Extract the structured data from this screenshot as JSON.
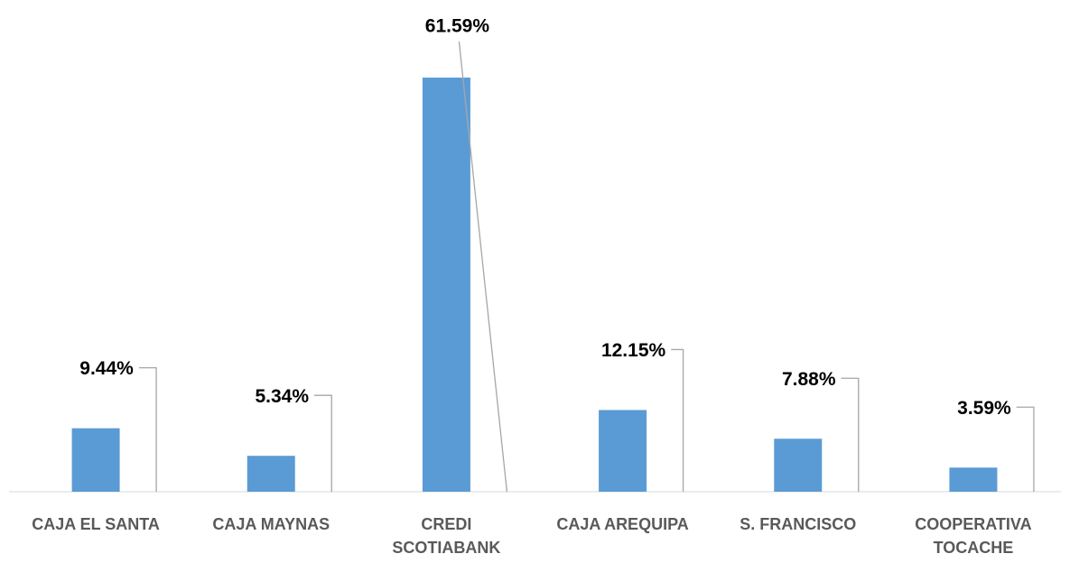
{
  "chart_data": {
    "type": "bar",
    "categories": [
      "CAJA EL SANTA",
      "CAJA MAYNAS",
      "CREDI SCOTIABANK",
      "CAJA AREQUIPA",
      "S. FRANCISCO",
      "COOPERATIVA TOCACHE"
    ],
    "values": [
      9.44,
      5.34,
      61.59,
      12.15,
      7.88,
      3.59
    ],
    "value_labels": [
      "9.44%",
      "5.34%",
      "61.59%",
      "12.15%",
      "7.88%",
      "3.59%"
    ],
    "color": "#5b9bd5"
  }
}
